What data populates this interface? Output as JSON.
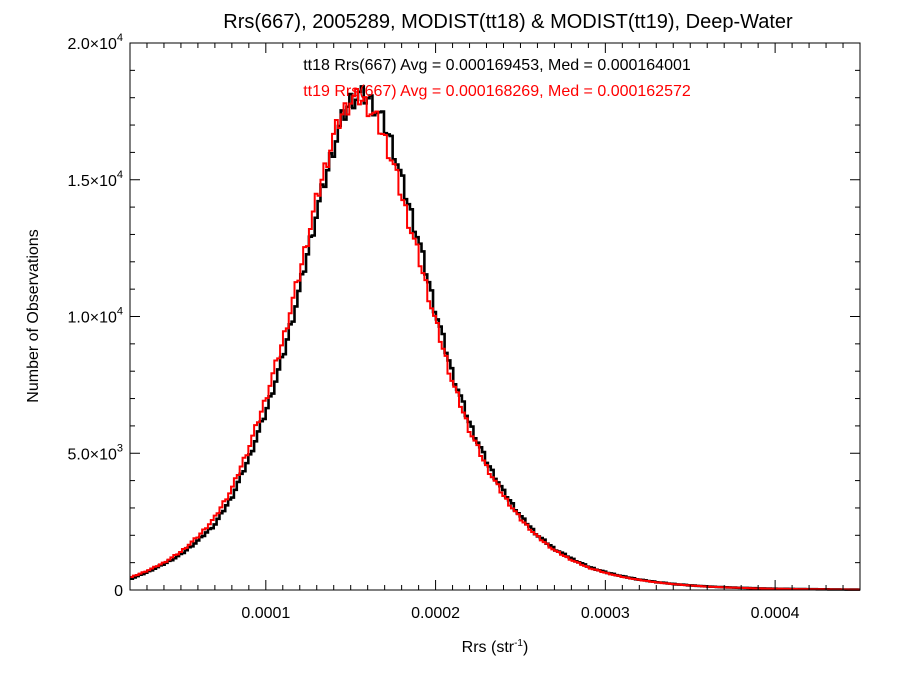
{
  "chart_data": {
    "type": "step-histogram",
    "title": "Rrs(667), 2005289, MODIST(tt18) & MODIST(tt19), Deep-Water",
    "xlabel_main": "Rrs (str",
    "xlabel_sup": "-1",
    "xlabel_close": ")",
    "ylabel": "Number of Observations",
    "xlim": [
      2e-05,
      0.00045
    ],
    "ylim": [
      0,
      20000
    ],
    "x_ticks": [
      {
        "value": 0.0001,
        "label": "0.0001"
      },
      {
        "value": 0.0002,
        "label": "0.0002"
      },
      {
        "value": 0.0003,
        "label": "0.0003"
      },
      {
        "value": 0.0004,
        "label": "0.0004"
      }
    ],
    "y_ticks": [
      {
        "value": 0,
        "mant": "0",
        "exp": ""
      },
      {
        "value": 5000,
        "mant": "5.0×10",
        "exp": "3"
      },
      {
        "value": 10000,
        "mant": "1.0×10",
        "exp": "4"
      },
      {
        "value": 15000,
        "mant": "1.5×10",
        "exp": "4"
      },
      {
        "value": 20000,
        "mant": "2.0×10",
        "exp": "4"
      }
    ],
    "annotations": [
      {
        "text": "tt18 Rrs(667) Avg = 0.000169453, Med = 0.000164001",
        "color": "#000000"
      },
      {
        "text": "tt19 Rrs(667) Avg = 0.000168269, Med = 0.000162572",
        "color": "#ff0000"
      }
    ],
    "series": [
      {
        "name": "tt18",
        "color": "#000000",
        "points": [
          [
            2e-05,
            400
          ],
          [
            3e-05,
            650
          ],
          [
            4e-05,
            950
          ],
          [
            5e-05,
            1300
          ],
          [
            6e-05,
            1800
          ],
          [
            7e-05,
            2400
          ],
          [
            8e-05,
            3400
          ],
          [
            9e-05,
            4800
          ],
          [
            0.0001,
            6500
          ],
          [
            0.00011,
            8500
          ],
          [
            0.00012,
            11000
          ],
          [
            0.00013,
            13800
          ],
          [
            0.00014,
            16200
          ],
          [
            0.000145,
            17200
          ],
          [
            0.00015,
            17900
          ],
          [
            0.000155,
            18100
          ],
          [
            0.00016,
            18000
          ],
          [
            0.000165,
            17600
          ],
          [
            0.00017,
            17000
          ],
          [
            0.000175,
            16200
          ],
          [
            0.00018,
            15000
          ],
          [
            0.00019,
            12800
          ],
          [
            0.0002,
            10200
          ],
          [
            0.00021,
            7900
          ],
          [
            0.00022,
            6100
          ],
          [
            0.00023,
            4700
          ],
          [
            0.00024,
            3600
          ],
          [
            0.00025,
            2700
          ],
          [
            0.00026,
            2000
          ],
          [
            0.00027,
            1500
          ],
          [
            0.00028,
            1150
          ],
          [
            0.00029,
            850
          ],
          [
            0.0003,
            650
          ],
          [
            0.00031,
            500
          ],
          [
            0.00032,
            380
          ],
          [
            0.00033,
            290
          ],
          [
            0.00034,
            220
          ],
          [
            0.00035,
            170
          ],
          [
            0.00036,
            130
          ],
          [
            0.00037,
            100
          ],
          [
            0.00038,
            80
          ],
          [
            0.00039,
            60
          ],
          [
            0.0004,
            48
          ],
          [
            0.00041,
            38
          ],
          [
            0.00042,
            30
          ],
          [
            0.00043,
            24
          ],
          [
            0.00044,
            18
          ],
          [
            0.00045,
            14
          ]
        ]
      },
      {
        "name": "tt19",
        "color": "#ff0000",
        "points": [
          [
            2e-05,
            450
          ],
          [
            3e-05,
            700
          ],
          [
            4e-05,
            1000
          ],
          [
            5e-05,
            1400
          ],
          [
            6e-05,
            1950
          ],
          [
            7e-05,
            2650
          ],
          [
            8e-05,
            3700
          ],
          [
            9e-05,
            5200
          ],
          [
            0.0001,
            7000
          ],
          [
            0.00011,
            9100
          ],
          [
            0.00012,
            11600
          ],
          [
            0.00013,
            14300
          ],
          [
            0.00014,
            16600
          ],
          [
            0.000145,
            17400
          ],
          [
            0.00015,
            17900
          ],
          [
            0.000155,
            18000
          ],
          [
            0.00016,
            17700
          ],
          [
            0.000165,
            17200
          ],
          [
            0.00017,
            16500
          ],
          [
            0.000175,
            15600
          ],
          [
            0.00018,
            14400
          ],
          [
            0.00019,
            12200
          ],
          [
            0.0002,
            9800
          ],
          [
            0.00021,
            7600
          ],
          [
            0.00022,
            5850
          ],
          [
            0.00023,
            4500
          ],
          [
            0.00024,
            3450
          ],
          [
            0.00025,
            2600
          ],
          [
            0.00026,
            1950
          ],
          [
            0.00027,
            1450
          ],
          [
            0.00028,
            1100
          ],
          [
            0.00029,
            820
          ],
          [
            0.0003,
            630
          ],
          [
            0.00031,
            480
          ],
          [
            0.00032,
            370
          ],
          [
            0.00033,
            280
          ],
          [
            0.00034,
            215
          ],
          [
            0.00035,
            165
          ],
          [
            0.00036,
            125
          ],
          [
            0.00037,
            98
          ],
          [
            0.00038,
            78
          ],
          [
            0.00039,
            58
          ],
          [
            0.0004,
            46
          ],
          [
            0.00041,
            36
          ],
          [
            0.00042,
            29
          ],
          [
            0.00043,
            23
          ],
          [
            0.00044,
            17
          ],
          [
            0.00045,
            13
          ]
        ]
      }
    ],
    "bin_width": 1.7e-06
  }
}
